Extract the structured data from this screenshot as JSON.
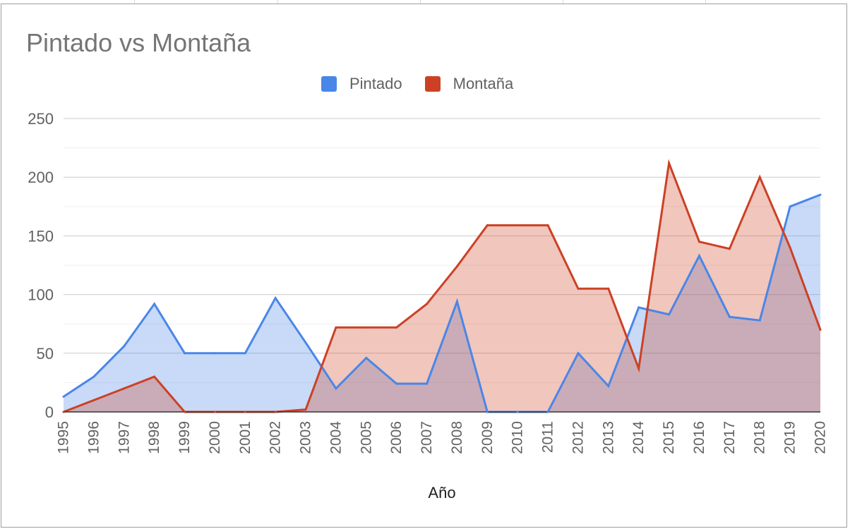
{
  "chart_data": {
    "type": "area",
    "title": "Pintado vs Montaña",
    "xlabel": "Año",
    "ylabel": "",
    "ylim": [
      0,
      250
    ],
    "yticks": [
      0,
      50,
      100,
      150,
      200,
      250
    ],
    "grid": true,
    "legend_position": "top",
    "categories": [
      "1995",
      "1996",
      "1997",
      "1998",
      "1999",
      "2000",
      "2001",
      "2002",
      "2003",
      "2004",
      "2005",
      "2006",
      "2007",
      "2008",
      "2009",
      "2010",
      "2011",
      "2012",
      "2013",
      "2014",
      "2015",
      "2016",
      "2017",
      "2018",
      "2019",
      "2020"
    ],
    "series": [
      {
        "name": "Pintado",
        "color": "#4a86e8",
        "values": [
          13,
          30,
          56,
          92,
          50,
          50,
          50,
          97,
          59,
          20,
          46,
          24,
          24,
          94,
          0,
          0,
          0,
          50,
          22,
          89,
          83,
          133,
          81,
          78,
          175,
          185
        ]
      },
      {
        "name": "Montaña",
        "color": "#cc4125",
        "values": [
          0,
          10,
          20,
          30,
          0,
          0,
          0,
          0,
          2,
          72,
          72,
          72,
          92,
          124,
          159,
          159,
          159,
          105,
          105,
          37,
          212,
          145,
          139,
          200,
          140,
          70
        ]
      }
    ]
  }
}
